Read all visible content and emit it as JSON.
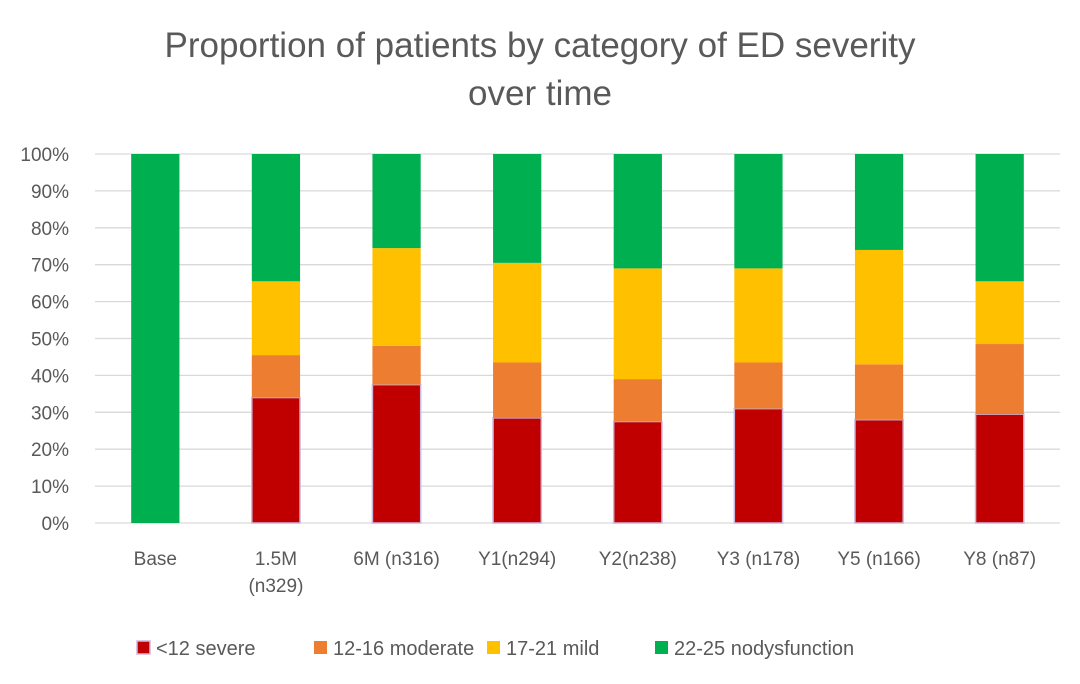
{
  "chart_data": {
    "type": "bar",
    "stacked": true,
    "title_lines": [
      "Proportion of patients by category of ED severity",
      "over time"
    ],
    "categories": [
      [
        "Base"
      ],
      [
        "1.5M",
        "(n329)"
      ],
      [
        "6M (n316)"
      ],
      [
        "Y1(n294)"
      ],
      [
        "Y2(n238)"
      ],
      [
        "Y3 (n178)"
      ],
      [
        "Y5 (n166)"
      ],
      [
        "Y8 (n87)"
      ]
    ],
    "series": [
      {
        "name": "<12 severe",
        "color": "#C00000",
        "values": [
          0,
          34,
          37.5,
          28.5,
          27.5,
          31,
          28,
          29.5
        ]
      },
      {
        "name": "12-16 moderate",
        "color": "#ED7D31",
        "values": [
          0,
          11.5,
          10.5,
          15,
          11.5,
          12.5,
          15,
          19
        ]
      },
      {
        "name": "17-21 mild",
        "color": "#FFC000",
        "values": [
          0,
          20,
          26.5,
          27,
          30,
          25.5,
          31,
          17
        ]
      },
      {
        "name": "22-25 nodysfunction",
        "color": "#00B050",
        "values": [
          100,
          34.5,
          25.5,
          29.5,
          31,
          31,
          26,
          34.5
        ]
      }
    ],
    "yticks": [
      "0%",
      "10%",
      "20%",
      "30%",
      "40%",
      "50%",
      "60%",
      "70%",
      "80%",
      "90%",
      "100%"
    ],
    "ylim": [
      0,
      100
    ],
    "grid": true,
    "legend_position": "bottom"
  }
}
